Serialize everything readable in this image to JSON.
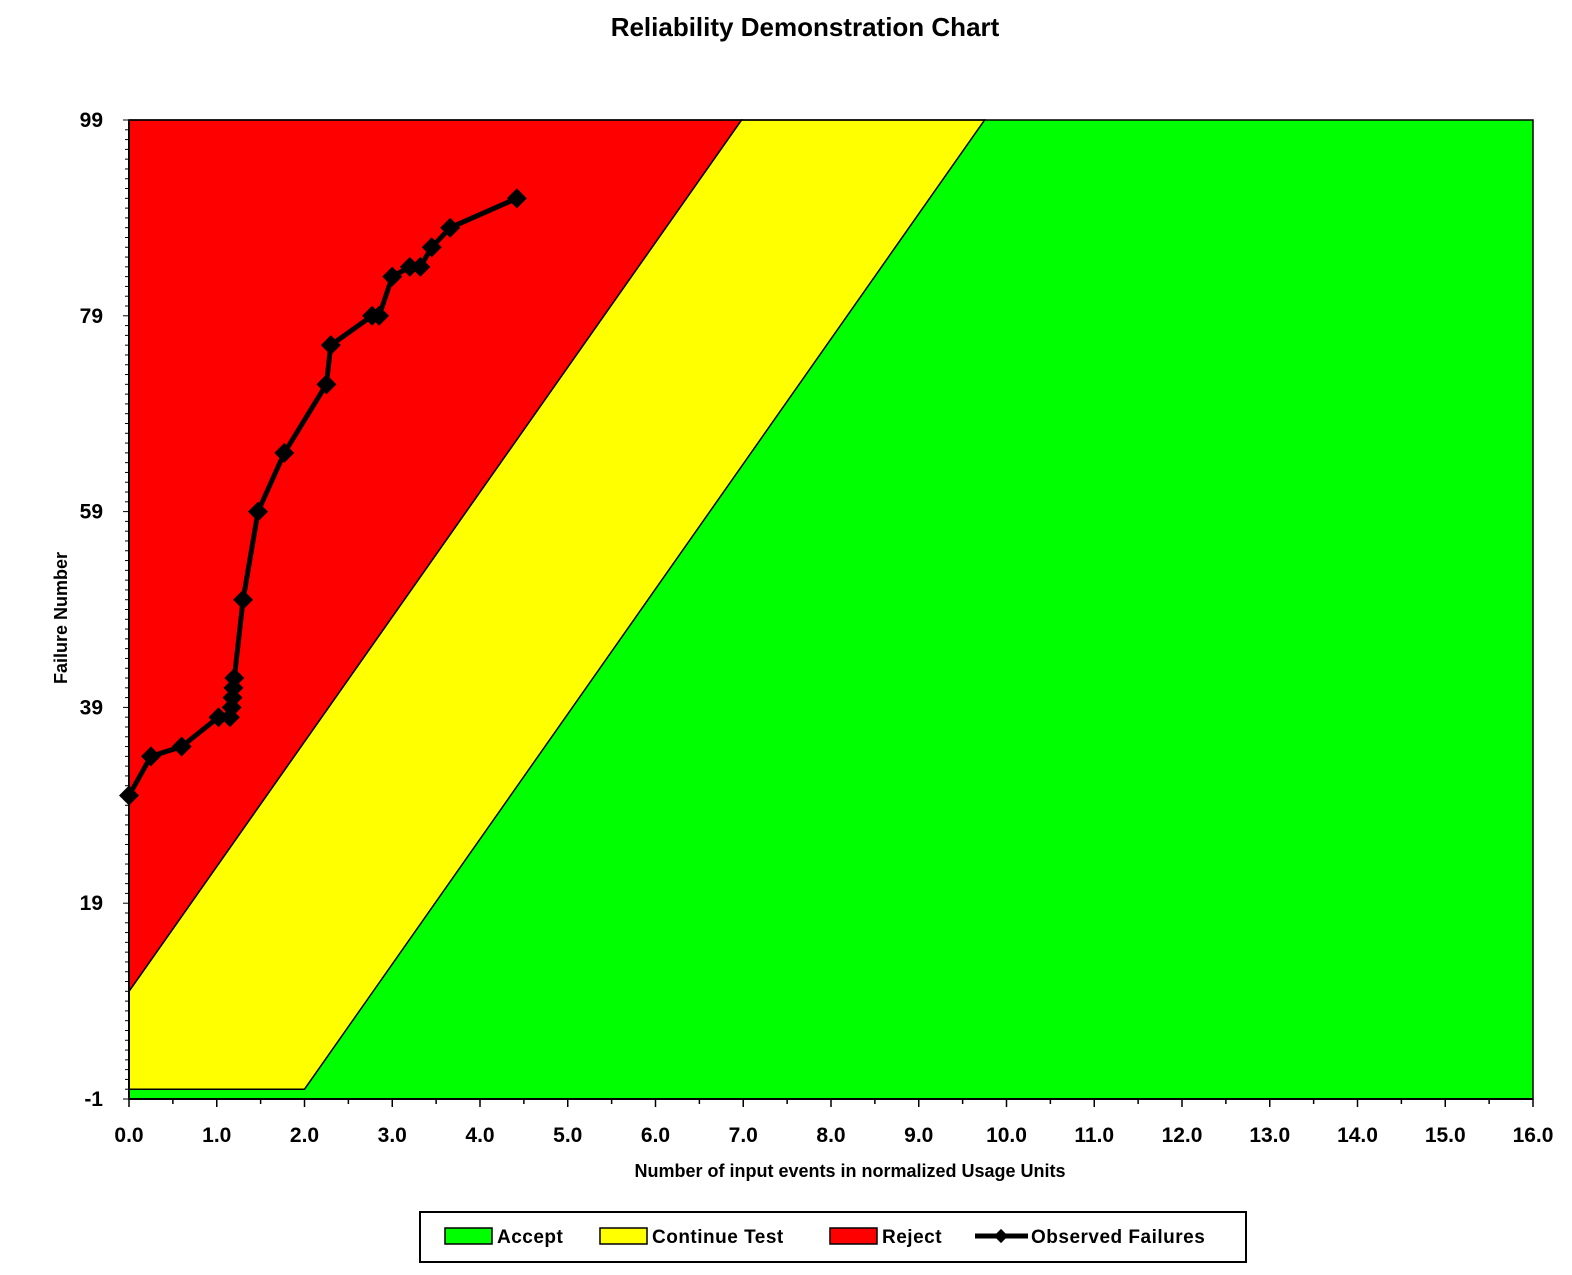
{
  "chart_data": {
    "type": "area",
    "title": "Reliability Demonstration Chart",
    "xlabel": "Number of input events in normalized Usage Units",
    "ylabel": "Failure Number",
    "xlim": [
      0,
      16
    ],
    "ylim": [
      -1,
      99
    ],
    "x_ticks": [
      "0.0",
      "1.0",
      "2.0",
      "3.0",
      "4.0",
      "5.0",
      "6.0",
      "7.0",
      "8.0",
      "9.0",
      "10.0",
      "11.0",
      "12.0",
      "13.0",
      "14.0",
      "15.0",
      "16.0"
    ],
    "y_ticks": [
      "-1",
      "19",
      "39",
      "59",
      "79",
      "99"
    ],
    "grid": false,
    "legend_position": "bottom",
    "regions": [
      {
        "name": "Accept",
        "color": "#00ff00"
      },
      {
        "name": "Continue Test",
        "color": "#ffff00"
      },
      {
        "name": "Reject",
        "color": "#ff0000"
      }
    ],
    "boundaries": {
      "reject": {
        "x": [
          0.0,
          6.98
        ],
        "y": [
          10.0,
          99
        ]
      },
      "accept": {
        "x": [
          0.0,
          2.0,
          9.75
        ],
        "y": [
          0.0,
          0.0,
          99
        ]
      }
    },
    "series": [
      {
        "name": "Observed Failures",
        "color": "#000000",
        "x": [
          0.0,
          0.25,
          0.6,
          1.02,
          1.15,
          1.17,
          1.18,
          1.19,
          1.2,
          1.3,
          1.47,
          1.77,
          2.25,
          2.3,
          2.77,
          2.85,
          3.0,
          3.2,
          3.32,
          3.45,
          3.66,
          4.42
        ],
        "y": [
          30,
          34,
          35,
          38,
          38,
          39,
          40,
          41,
          42,
          50,
          59,
          65,
          72,
          76,
          79,
          79,
          83,
          84,
          84,
          86,
          88,
          91
        ]
      }
    ]
  },
  "legend": {
    "accept_label": "Accept",
    "continue_label": "Continue Test",
    "reject_label": "Reject",
    "observed_label": "Observed Failures"
  }
}
